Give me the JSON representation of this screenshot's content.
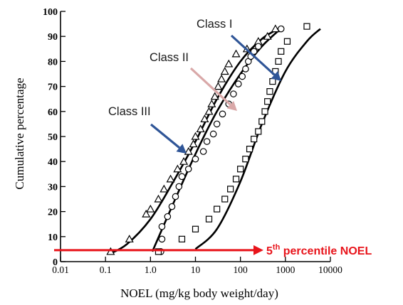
{
  "chart_data": {
    "type": "scatter",
    "xscale": "log",
    "xlim": [
      0.01,
      10000
    ],
    "ylim": [
      0,
      100
    ],
    "xlabel": "NOEL (mg/kg body weight/day)",
    "ylabel": "Cumulative percentage",
    "xticks": [
      "0.01",
      "0.1",
      "1.0",
      "10",
      "100",
      "1000",
      "10000"
    ],
    "xtick_values": [
      0.01,
      0.1,
      1,
      10,
      100,
      1000,
      10000
    ],
    "yticks": [
      "0",
      "10",
      "20",
      "30",
      "40",
      "50",
      "60",
      "70",
      "80",
      "90",
      "100"
    ],
    "ytick_values": [
      0,
      10,
      20,
      30,
      40,
      50,
      60,
      70,
      80,
      90,
      100
    ],
    "grid": false,
    "series": [
      {
        "name": "Class III",
        "marker": "triangle",
        "points": [
          [
            0.13,
            4
          ],
          [
            0.34,
            9
          ],
          [
            0.8,
            19
          ],
          [
            1.0,
            21
          ],
          [
            1.5,
            25
          ],
          [
            2.0,
            29
          ],
          [
            2.8,
            33
          ],
          [
            4.0,
            37
          ],
          [
            5.5,
            40
          ],
          [
            7.0,
            44
          ],
          [
            9.0,
            47
          ],
          [
            10,
            50
          ],
          [
            13,
            53
          ],
          [
            16,
            57
          ],
          [
            20,
            60
          ],
          [
            23,
            63
          ],
          [
            27,
            66
          ],
          [
            32,
            70
          ],
          [
            38,
            73
          ],
          [
            45,
            76
          ],
          [
            55,
            79
          ],
          [
            80,
            83
          ],
          [
            140,
            85
          ],
          [
            250,
            88
          ],
          [
            400,
            90
          ],
          [
            600,
            93
          ]
        ],
        "curve": [
          [
            0.12,
            3
          ],
          [
            0.3,
            7
          ],
          [
            1,
            17
          ],
          [
            3,
            31
          ],
          [
            10,
            48
          ],
          [
            30,
            65
          ],
          [
            100,
            80
          ],
          [
            300,
            89
          ],
          [
            700,
            93
          ]
        ]
      },
      {
        "name": "Class II",
        "marker": "circle",
        "points": [
          [
            1.7,
            4
          ],
          [
            1.8,
            9
          ],
          [
            1.8,
            14
          ],
          [
            2.4,
            18
          ],
          [
            3.0,
            22
          ],
          [
            3.6,
            26
          ],
          [
            4.3,
            30
          ],
          [
            5.0,
            34
          ],
          [
            7.0,
            37
          ],
          [
            10,
            41
          ],
          [
            15,
            44
          ],
          [
            18,
            48
          ],
          [
            25,
            51
          ],
          [
            30,
            55
          ],
          [
            40,
            59
          ],
          [
            55,
            63
          ],
          [
            70,
            67
          ],
          [
            90,
            71
          ],
          [
            110,
            74
          ],
          [
            130,
            77
          ],
          [
            150,
            80
          ],
          [
            170,
            82
          ],
          [
            200,
            84
          ],
          [
            250,
            86
          ],
          [
            800,
            93
          ]
        ],
        "curve": [
          [
            1.1,
            4
          ],
          [
            3,
            22
          ],
          [
            10,
            43
          ],
          [
            30,
            60
          ],
          [
            100,
            75
          ],
          [
            300,
            86
          ],
          [
            900,
            94
          ]
        ]
      },
      {
        "name": "Class I",
        "marker": "square",
        "points": [
          [
            1.5,
            4
          ],
          [
            5.0,
            9
          ],
          [
            10,
            13
          ],
          [
            20,
            17
          ],
          [
            30,
            21
          ],
          [
            45,
            25
          ],
          [
            60,
            29
          ],
          [
            80,
            33
          ],
          [
            100,
            37
          ],
          [
            130,
            41
          ],
          [
            160,
            45
          ],
          [
            200,
            49
          ],
          [
            250,
            52
          ],
          [
            300,
            56
          ],
          [
            350,
            60
          ],
          [
            400,
            64
          ],
          [
            450,
            68
          ],
          [
            520,
            72
          ],
          [
            600,
            76
          ],
          [
            700,
            80
          ],
          [
            800,
            84
          ],
          [
            1100,
            88
          ],
          [
            3000,
            94
          ]
        ],
        "curve": [
          [
            10,
            5
          ],
          [
            30,
            13
          ],
          [
            100,
            32
          ],
          [
            300,
            55
          ],
          [
            1000,
            76
          ],
          [
            3000,
            88
          ],
          [
            6000,
            93
          ]
        ]
      }
    ],
    "annotations": [
      {
        "label": "Class I",
        "color": "#2f5597"
      },
      {
        "label": "Class II",
        "color": "#d9a8a8"
      },
      {
        "label": "Class III",
        "color": "#2f5597"
      }
    ],
    "threshold": {
      "y": 4,
      "label_main": "5",
      "label_sup": "th",
      "label_rest": " percentile NOEL",
      "color": "#e8141b"
    }
  }
}
